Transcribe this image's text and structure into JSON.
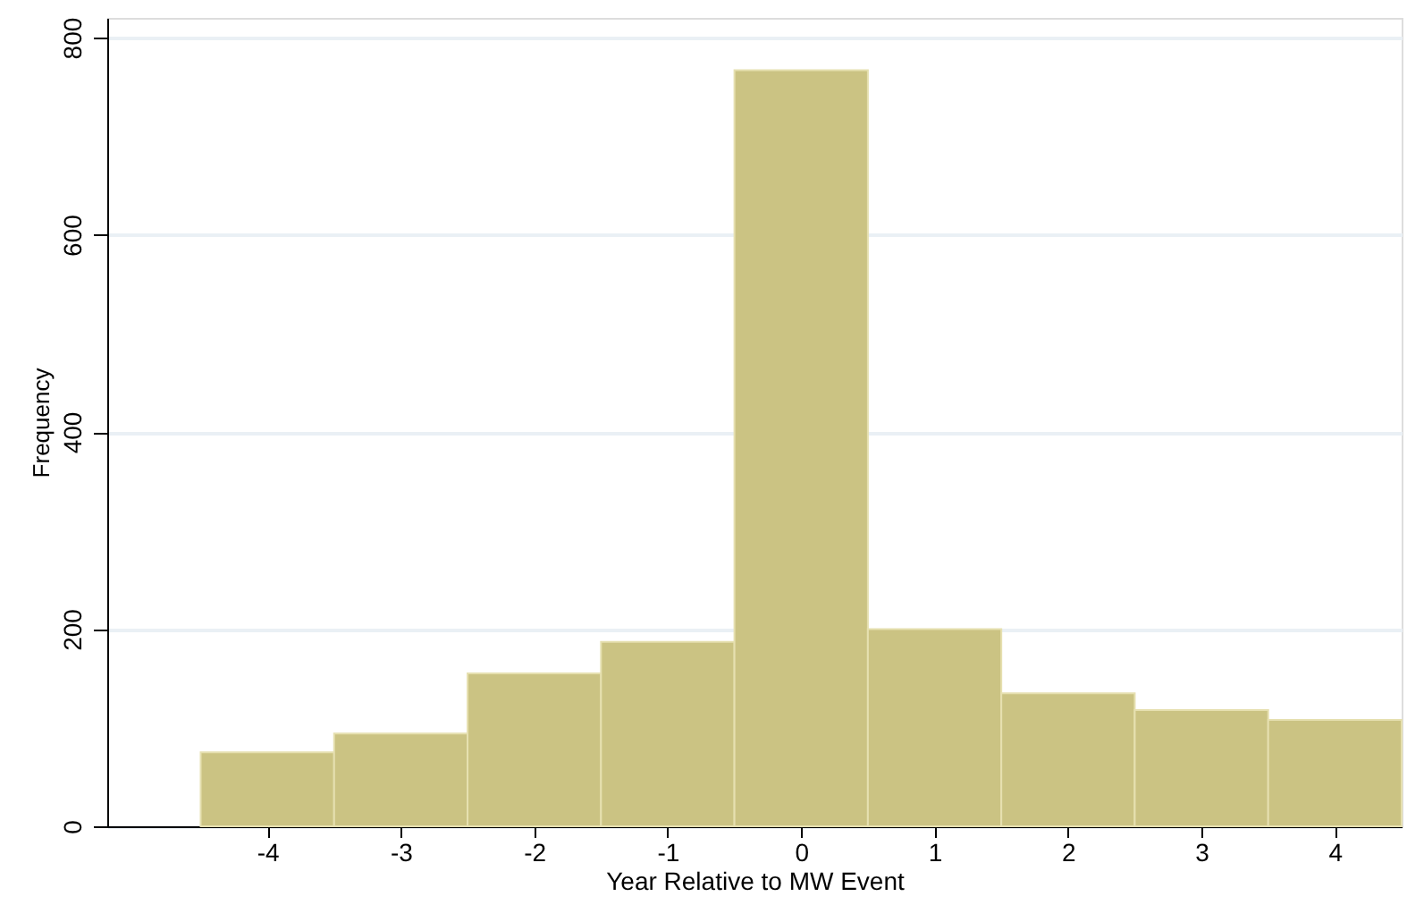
{
  "chart_data": {
    "type": "histogram",
    "xlabel": "Year Relative to MW Event",
    "ylabel": "Frequency",
    "bins": [
      -4.5,
      -3.5,
      -2.5,
      -1.5,
      -0.5,
      0.5,
      1.5,
      2.5,
      3.5,
      4.5
    ],
    "values": [
      75,
      94,
      155,
      187,
      767,
      200,
      135,
      118,
      108
    ],
    "color": "#cbc383",
    "xlim": [
      -5.2,
      4.5
    ],
    "xticks": [
      -4,
      -3,
      -2,
      -1,
      0,
      1,
      2,
      3,
      4
    ],
    "ylim": [
      0,
      820
    ],
    "yticks": [
      0,
      200,
      400,
      600,
      800
    ],
    "grid": "y"
  }
}
